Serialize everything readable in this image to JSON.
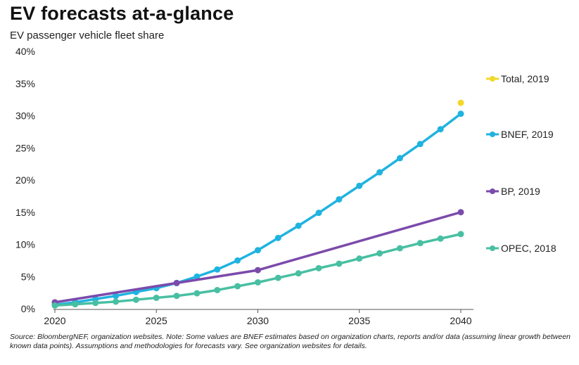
{
  "chart_data": {
    "type": "line",
    "title": "EV forecasts at-a-glance",
    "subtitle": "EV passenger vehicle fleet share",
    "xlabel": "",
    "ylabel": "",
    "xlim": [
      2020,
      2040
    ],
    "ylim": [
      0,
      40
    ],
    "x_ticks": [
      "2020",
      "2025",
      "2030",
      "2035",
      "2040"
    ],
    "y_ticks": [
      "0%",
      "5%",
      "10%",
      "15%",
      "20%",
      "25%",
      "30%",
      "35%",
      "40%"
    ],
    "grid": false,
    "legend_placement": "right",
    "series": [
      {
        "name": "Total, 2019",
        "color": "#f2d829",
        "line": false,
        "x": [
          2040
        ],
        "y": [
          32
        ]
      },
      {
        "name": "BNEF, 2019",
        "color": "#1fb3e0",
        "line": true,
        "markers": true,
        "x": [
          2020,
          2021,
          2022,
          2023,
          2024,
          2025,
          2026,
          2027,
          2028,
          2029,
          2030,
          2031,
          2032,
          2033,
          2034,
          2035,
          2036,
          2037,
          2038,
          2039,
          2040
        ],
        "y": [
          0.6,
          1.0,
          1.5,
          2.0,
          2.6,
          3.2,
          4.0,
          5.0,
          6.1,
          7.5,
          9.1,
          11.0,
          12.9,
          14.9,
          17.0,
          19.1,
          21.2,
          23.4,
          25.6,
          27.9,
          30.3
        ]
      },
      {
        "name": "BP, 2019",
        "color": "#7b4bab",
        "line": true,
        "markers": true,
        "x": [
          2020,
          2026,
          2030,
          2040
        ],
        "y": [
          1.0,
          4.0,
          6.0,
          15.0
        ]
      },
      {
        "name": "OPEC, 2018",
        "color": "#48bfa2",
        "line": true,
        "markers": true,
        "x": [
          2020,
          2021,
          2022,
          2023,
          2024,
          2025,
          2026,
          2027,
          2028,
          2029,
          2030,
          2031,
          2032,
          2033,
          2034,
          2035,
          2036,
          2037,
          2038,
          2039,
          2040
        ],
        "y": [
          0.5,
          0.7,
          0.9,
          1.1,
          1.4,
          1.7,
          2.0,
          2.4,
          2.9,
          3.5,
          4.1,
          4.8,
          5.5,
          6.3,
          7.0,
          7.8,
          8.6,
          9.4,
          10.2,
          10.9,
          11.6
        ]
      }
    ]
  },
  "source_note": "Source: BloombergNEF, organization websites. Note: Some values are BNEF estimates based on organization charts, reports and/or data (assuming linear growth between known data points). Assumptions and methodologies for forecasts vary. See organization websites for details."
}
